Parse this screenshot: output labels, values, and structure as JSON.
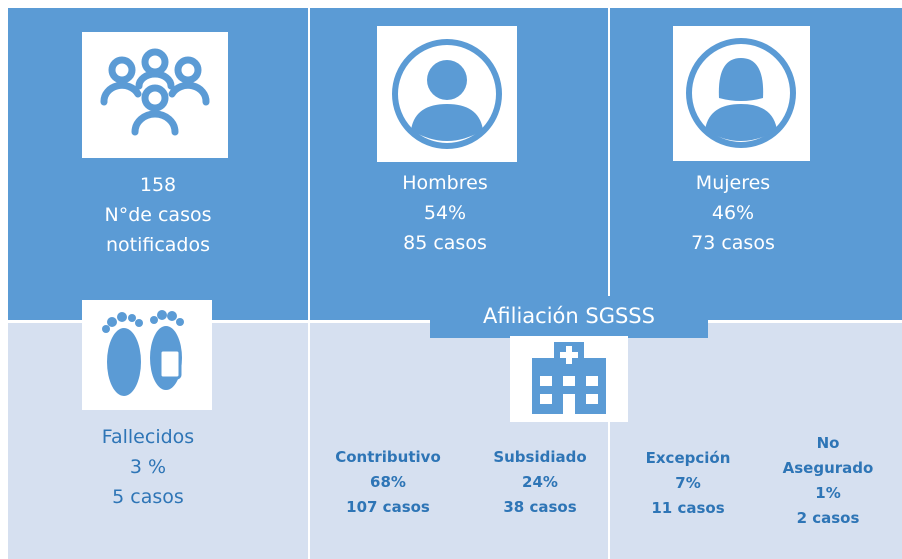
{
  "cases": {
    "lines": [
      "158",
      "N°de casos",
      "notificados"
    ]
  },
  "men": {
    "lines": [
      "Hombres",
      "54%",
      "85 casos"
    ]
  },
  "women": {
    "lines": [
      "Mujeres",
      "46%",
      "73 casos"
    ]
  },
  "deaths": {
    "lines": [
      "Fallecidos",
      "3 %",
      "5 casos"
    ]
  },
  "affiliation": {
    "title": "Afiliación SGSSS",
    "items": [
      {
        "lines": [
          "Contributivo",
          "68%",
          "107 casos"
        ]
      },
      {
        "lines": [
          "Subsidiado",
          "24%",
          "38 casos"
        ]
      },
      {
        "lines": [
          "Excepción",
          "7%",
          "11 casos"
        ]
      },
      {
        "lines": [
          "No",
          "Asegurado",
          "1%",
          "2 casos"
        ]
      }
    ]
  }
}
